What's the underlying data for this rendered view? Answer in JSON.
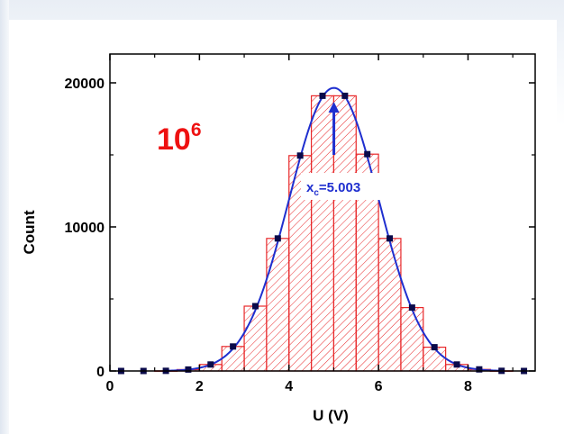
{
  "chart_data": {
    "type": "bar",
    "title": "",
    "xlabel": "U (V)",
    "ylabel": "Count",
    "xlim": [
      0,
      9.5
    ],
    "ylim": [
      0,
      22000
    ],
    "x_ticks": [
      0,
      2,
      4,
      6,
      8
    ],
    "y_ticks": [
      0,
      10000,
      20000
    ],
    "bin_width": 0.5,
    "bins": {
      "centers": [
        0.25,
        0.75,
        1.25,
        1.75,
        2.25,
        2.75,
        3.25,
        3.75,
        4.25,
        4.75,
        5.25,
        5.75,
        6.25,
        6.75,
        7.25,
        7.75,
        8.25,
        8.75,
        9.25
      ],
      "counts": [
        0,
        0,
        10,
        100,
        450,
        1700,
        4500,
        9200,
        14950,
        19100,
        19100,
        15050,
        9200,
        4400,
        1650,
        450,
        110,
        10,
        0
      ]
    },
    "fit": {
      "type": "gaussian",
      "xc": 5.003,
      "sigma": 1.0,
      "amplitude": 19650,
      "annotation_label": "=5.003",
      "annotation_subscript": "c",
      "annotation_base": "x"
    },
    "inset_label_base": "10",
    "inset_label_exp": "6",
    "colors": {
      "bar_stroke": "#e8282a",
      "fit_line": "#1f2fcf",
      "points": "#0a0a4a",
      "annotation": "#1f2fcf",
      "inset_label": "#ee1111"
    }
  }
}
